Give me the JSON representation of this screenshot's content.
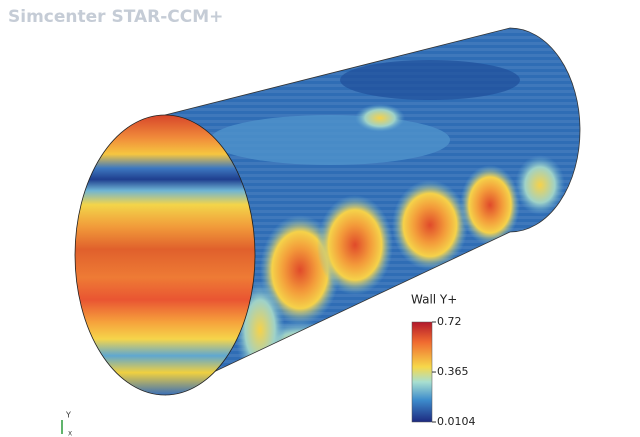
{
  "header": {
    "title": "Simcenter STAR-CCM+"
  },
  "colorbar": {
    "title": "Wall Y+",
    "range": [
      0.0104,
      0.72
    ],
    "ticks": [
      0.72,
      0.365,
      0.0104
    ]
  },
  "triad": {
    "labels": [
      "Y",
      "X"
    ]
  }
}
